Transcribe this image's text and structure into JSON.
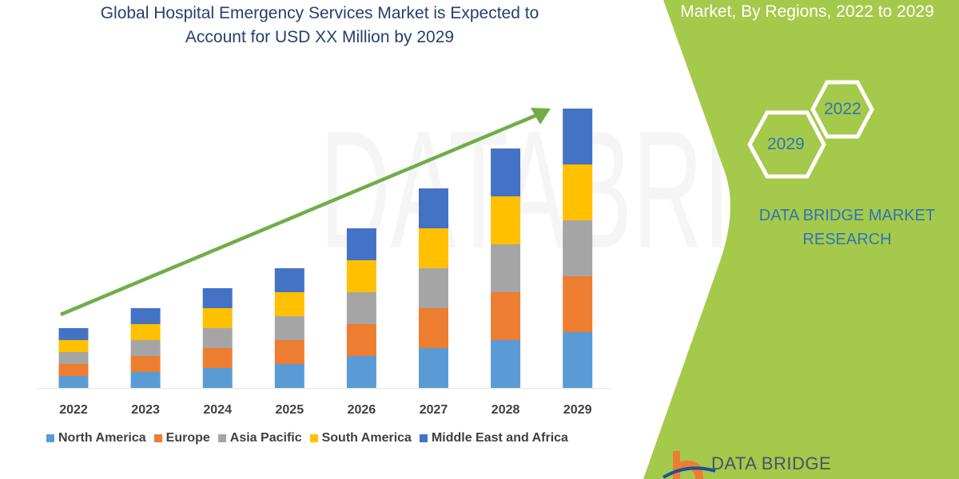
{
  "header": {
    "title_line1": "Global Hospital Emergency Services Market is Expected to",
    "title_line2": "Account for USD XX Million by 2029",
    "subtitle": "Market, By Regions, 2022 to 2029"
  },
  "side_panel": {
    "hex_start": "2022",
    "hex_end": "2029",
    "brand_line1": "DATA BRIDGE MARKET",
    "brand_line2": "RESEARCH",
    "logo_text": "DATA BRIDGE",
    "panel_color": "#a5c94a"
  },
  "chart_data": {
    "type": "bar",
    "stacked": true,
    "categories": [
      "2022",
      "2023",
      "2024",
      "2025",
      "2026",
      "2027",
      "2028",
      "2029"
    ],
    "series": [
      {
        "name": "North America",
        "color": "#5b9bd5",
        "values": [
          15,
          20,
          25,
          30,
          40,
          50,
          60,
          70
        ]
      },
      {
        "name": "Europe",
        "color": "#ed7d31",
        "values": [
          15,
          20,
          25,
          30,
          40,
          50,
          60,
          70
        ]
      },
      {
        "name": "Asia Pacific",
        "color": "#a5a5a5",
        "values": [
          15,
          20,
          25,
          30,
          40,
          50,
          60,
          70
        ]
      },
      {
        "name": "South America",
        "color": "#ffc000",
        "values": [
          15,
          20,
          25,
          30,
          40,
          50,
          60,
          70
        ]
      },
      {
        "name": "Middle East and Africa",
        "color": "#4472c4",
        "values": [
          15,
          20,
          25,
          30,
          40,
          50,
          60,
          70
        ]
      }
    ],
    "y_axis_shown": false,
    "grid": false,
    "legend_position": "bottom",
    "trend_arrow_color": "#70ad47"
  }
}
